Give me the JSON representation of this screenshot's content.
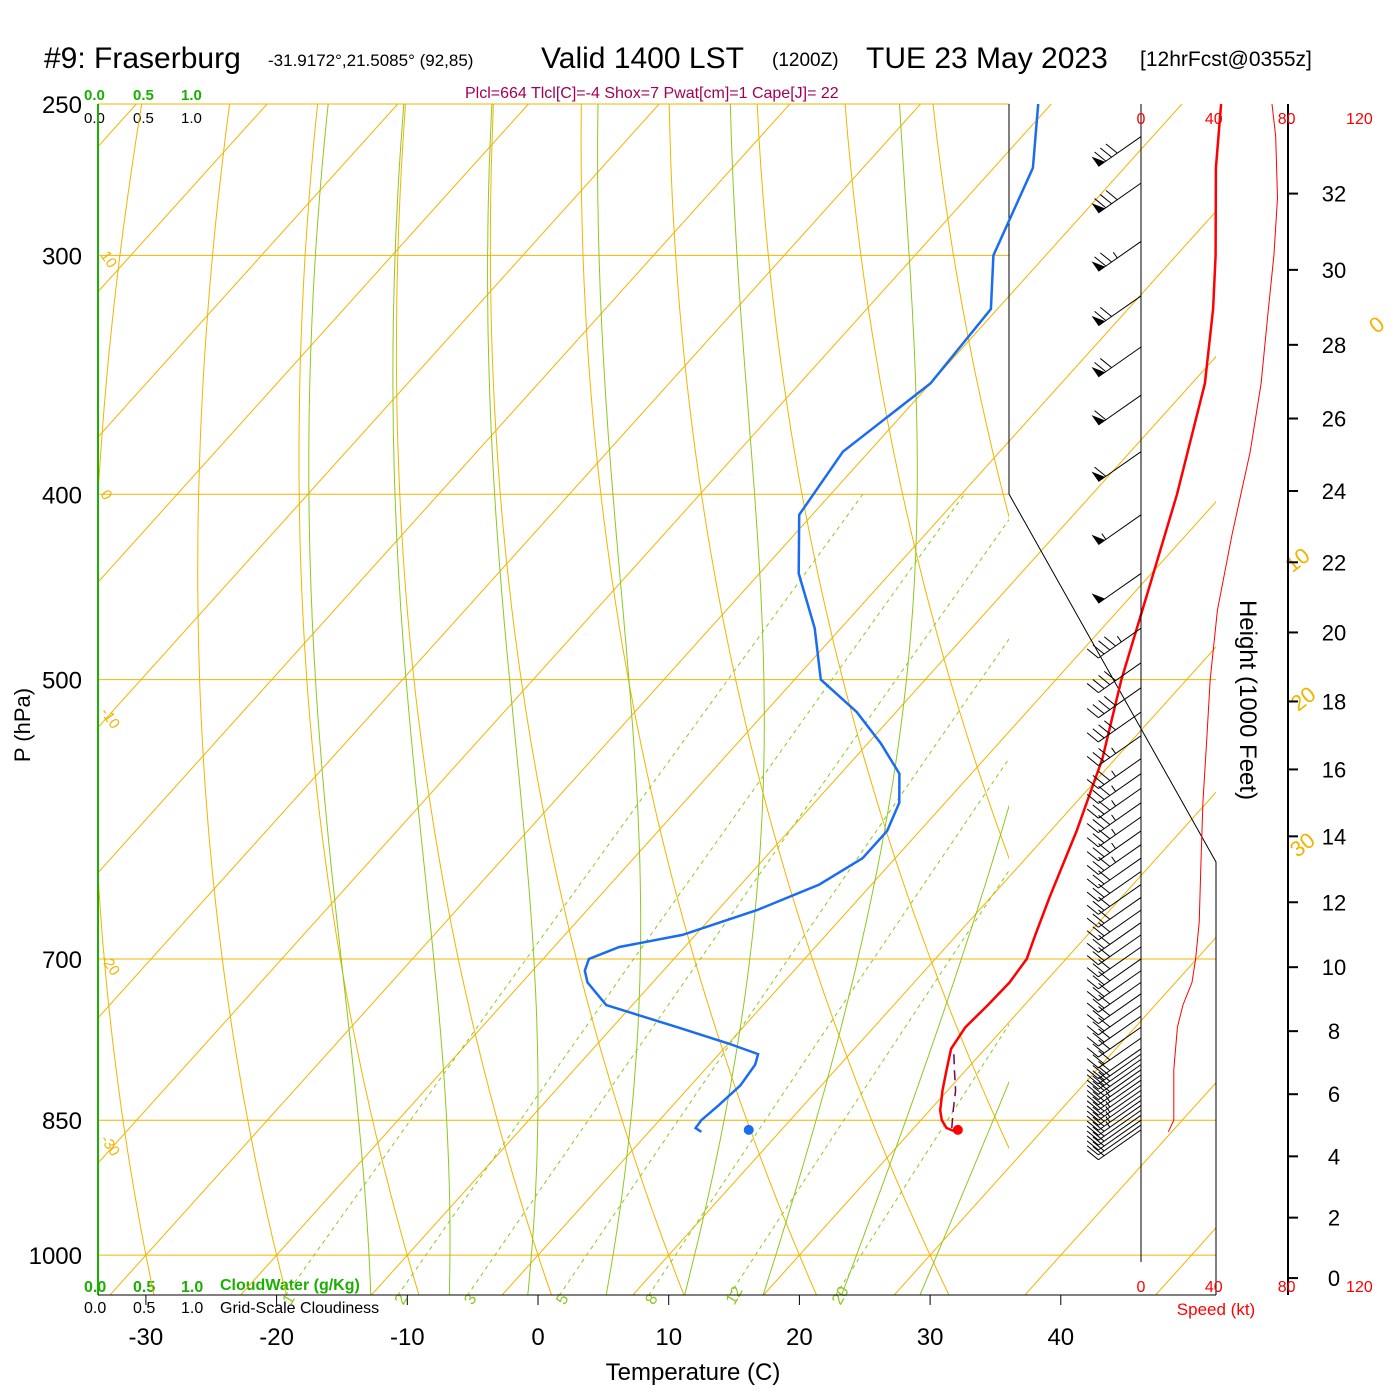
{
  "header": {
    "station": "#9: Fraserburg",
    "coords": "-31.9172°,21.5085° (92,85)",
    "valid_a": "Valid 1400 LST",
    "valid_b": "(1200Z)",
    "valid_c": "TUE 23 May 2023",
    "forecast": "[12hrFcst@0355z]",
    "indices": "Plcl=664 Tlcl[C]=-4 Shox=7 Pwat[cm]=1 Cape[J]= 22"
  },
  "colors": {
    "isotherm": "#f2b400",
    "dry_adiabat": "#f2b400",
    "moist_adiabat": "#8cc820",
    "mixing_ratio": "#8cc820",
    "temperature": "#ff0000",
    "dewpoint": "#1a6cf0",
    "parcel": "#7a0050",
    "cloud": "#19b000",
    "index_text": "#a0005a"
  },
  "cloud_scale": {
    "water_ticks": [
      "0.0",
      "0.5",
      "1.0"
    ],
    "cover_ticks": [
      "0.0",
      "0.5",
      "1.0"
    ],
    "water_label": "CloudWater (g/Kg)",
    "cover_label": "Grid-Scale Cloudiness"
  },
  "axes": {
    "x_label": "Temperature (C)",
    "y_label": "P (hPa)",
    "height_label": "Height (1000 Feet)",
    "speed_label": "Speed (kt)"
  },
  "chart_data": {
    "type": "skew-t",
    "title": "#9: Fraserburg  Valid 1400 LST (1200Z) TUE 23 May 2023",
    "xlabel": "Temperature (C)",
    "ylabel": "P (hPa)",
    "log_pressure": true,
    "xlim": [
      -34,
      46
    ],
    "ylim": [
      1050,
      250
    ],
    "x_ticks": [
      -30,
      -20,
      -10,
      0,
      10,
      20,
      30,
      40
    ],
    "pressure_ticks": [
      250,
      300,
      400,
      500,
      700,
      850,
      1000
    ],
    "isotherm_labels": [
      {
        "label": "0",
        "t": 0
      },
      {
        "label": "10",
        "t": 10
      },
      {
        "label": "20",
        "t": 20
      },
      {
        "label": "30",
        "t": 30
      }
    ],
    "dry_adiabat_labels": [
      {
        "label": "10",
        "p": 300
      },
      {
        "label": "0",
        "p": 400
      },
      {
        "label": "-10",
        "p": 520
      },
      {
        "label": "-20",
        "p": 700
      },
      {
        "label": "-30",
        "p": 870
      }
    ],
    "mixing_ratio_lines": [
      1,
      2,
      3,
      5,
      8,
      12,
      20
    ],
    "temperature": {
      "name": "Temperature",
      "p": [
        862,
        858,
        850,
        840,
        820,
        800,
        780,
        760,
        740,
        720,
        700,
        680,
        650,
        600,
        550,
        500,
        450,
        400,
        350,
        320,
        300,
        270,
        250
      ],
      "t": [
        23.5,
        22.5,
        21.6,
        20.8,
        19.6,
        18.5,
        17.4,
        17.0,
        17.2,
        17.3,
        17.0,
        16.0,
        14.5,
        12.0,
        9.0,
        5.0,
        1.0,
        -3.5,
        -9.0,
        -13.5,
        -17.0,
        -23.0,
        -27.0
      ]
    },
    "dewpoint": {
      "name": "Dewpoint",
      "p": [
        862,
        858,
        850,
        835,
        815,
        795,
        785,
        775,
        760,
        740,
        720,
        710,
        700,
        690,
        680,
        660,
        640,
        620,
        600,
        580,
        560,
        540,
        520,
        500,
        470,
        440,
        410,
        380,
        350,
        320,
        300,
        270,
        250
      ],
      "t": [
        4.0,
        3.3,
        3.2,
        3.5,
        3.8,
        3.5,
        3.0,
        0.0,
        -5.0,
        -12.0,
        -15.0,
        -16.0,
        -16.5,
        -15.0,
        -11.0,
        -7.0,
        -4.0,
        -2.5,
        -2.5,
        -3.5,
        -5.5,
        -9.0,
        -13.0,
        -18.0,
        -22.0,
        -27.0,
        -31.0,
        -32.0,
        -30.0,
        -30.5,
        -34.0,
        -37.0,
        -41.0
      ]
    },
    "parcel": {
      "name": "Parcel",
      "p": [
        858,
        840,
        820,
        800,
        780
      ],
      "t": [
        22.9,
        21.8,
        20.6,
        19.1,
        17.6
      ]
    },
    "surface_temp": {
      "p": 860,
      "t": 23.5
    },
    "surface_dewpoint": {
      "p": 860,
      "t": 7.5
    },
    "wind_barbs": {
      "p": [
        860,
        855,
        850,
        845,
        840,
        835,
        830,
        825,
        820,
        815,
        810,
        805,
        800,
        795,
        790,
        785,
        780,
        770,
        760,
        750,
        740,
        730,
        720,
        710,
        700,
        690,
        680,
        670,
        660,
        650,
        640,
        630,
        620,
        610,
        600,
        590,
        580,
        570,
        560,
        550,
        535,
        520,
        505,
        490,
        470,
        440,
        410,
        380,
        355,
        335,
        315,
        295,
        275,
        260
      ],
      "speed_kt": [
        20,
        22,
        22,
        24,
        24,
        25,
        25,
        26,
        26,
        27,
        28,
        28,
        30,
        30,
        30,
        30,
        30,
        30,
        30,
        30,
        30,
        30,
        30,
        30,
        30,
        30,
        30,
        30,
        30,
        30,
        30,
        30,
        30,
        35,
        35,
        35,
        35,
        35,
        35,
        35,
        35,
        40,
        40,
        40,
        45,
        50,
        55,
        60,
        60,
        70,
        70,
        75,
        80,
        80
      ]
    },
    "height_ticks_kft": [
      0,
      2,
      4,
      6,
      8,
      10,
      12,
      14,
      16,
      18,
      20,
      22,
      24,
      26,
      28,
      30,
      32
    ],
    "speed_ticks_kt": [
      0,
      40,
      80,
      120
    ],
    "speed_profile": {
      "name": "Speed (kt)",
      "p": [
        862,
        850,
        820,
        800,
        760,
        740,
        720,
        700,
        670,
        620,
        580,
        540,
        500,
        460,
        420,
        380,
        350,
        320,
        300,
        280,
        260,
        250
      ],
      "kt": [
        15,
        18,
        18,
        18,
        20,
        23,
        28,
        30,
        32,
        33,
        34,
        36,
        38,
        42,
        50,
        60,
        66,
        70,
        73,
        75,
        74,
        72
      ]
    },
    "cloud_water_ticks": [
      "0.0",
      "0.5",
      "1.0"
    ],
    "cloudiness_ticks": [
      "0.0",
      "0.5",
      "1.0"
    ]
  }
}
